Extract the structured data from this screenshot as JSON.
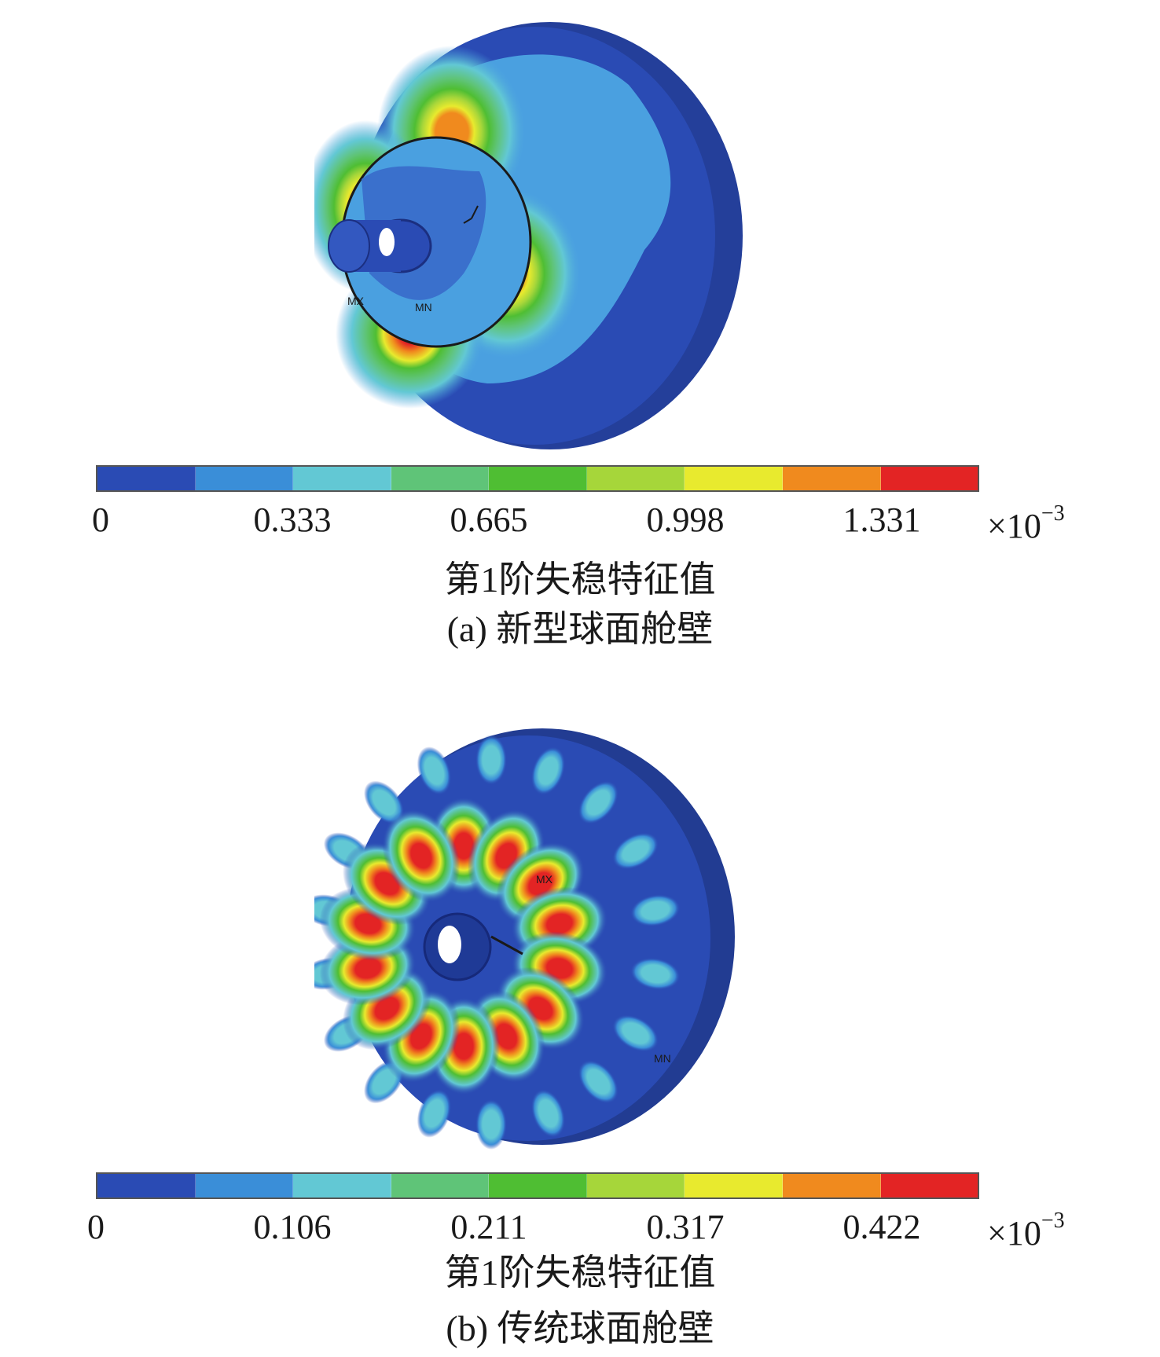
{
  "colors": [
    "#2a4bb4",
    "#3a8ed8",
    "#62c8d4",
    "#5fc478",
    "#4fbe33",
    "#a6d63a",
    "#e8ea2e",
    "#f08a1e",
    "#e32424"
  ],
  "panel_a": {
    "ticks": [
      "0",
      "0.333",
      "0.665",
      "0.998",
      "1.331"
    ],
    "multiplier": "×10",
    "exponent": "−3",
    "legend_title": "第1阶失稳特征值",
    "caption": "(a) 新型球面舱壁",
    "markers": [
      "MX",
      "MN"
    ]
  },
  "panel_b": {
    "ticks": [
      "0",
      "0.106",
      "0.211",
      "0.317",
      "0.422"
    ],
    "multiplier": "×10",
    "exponent": "−3",
    "legend_title": "第1阶失稳特征值",
    "caption": "(b) 传统球面舱壁",
    "markers": [
      "MX",
      "MN"
    ]
  }
}
